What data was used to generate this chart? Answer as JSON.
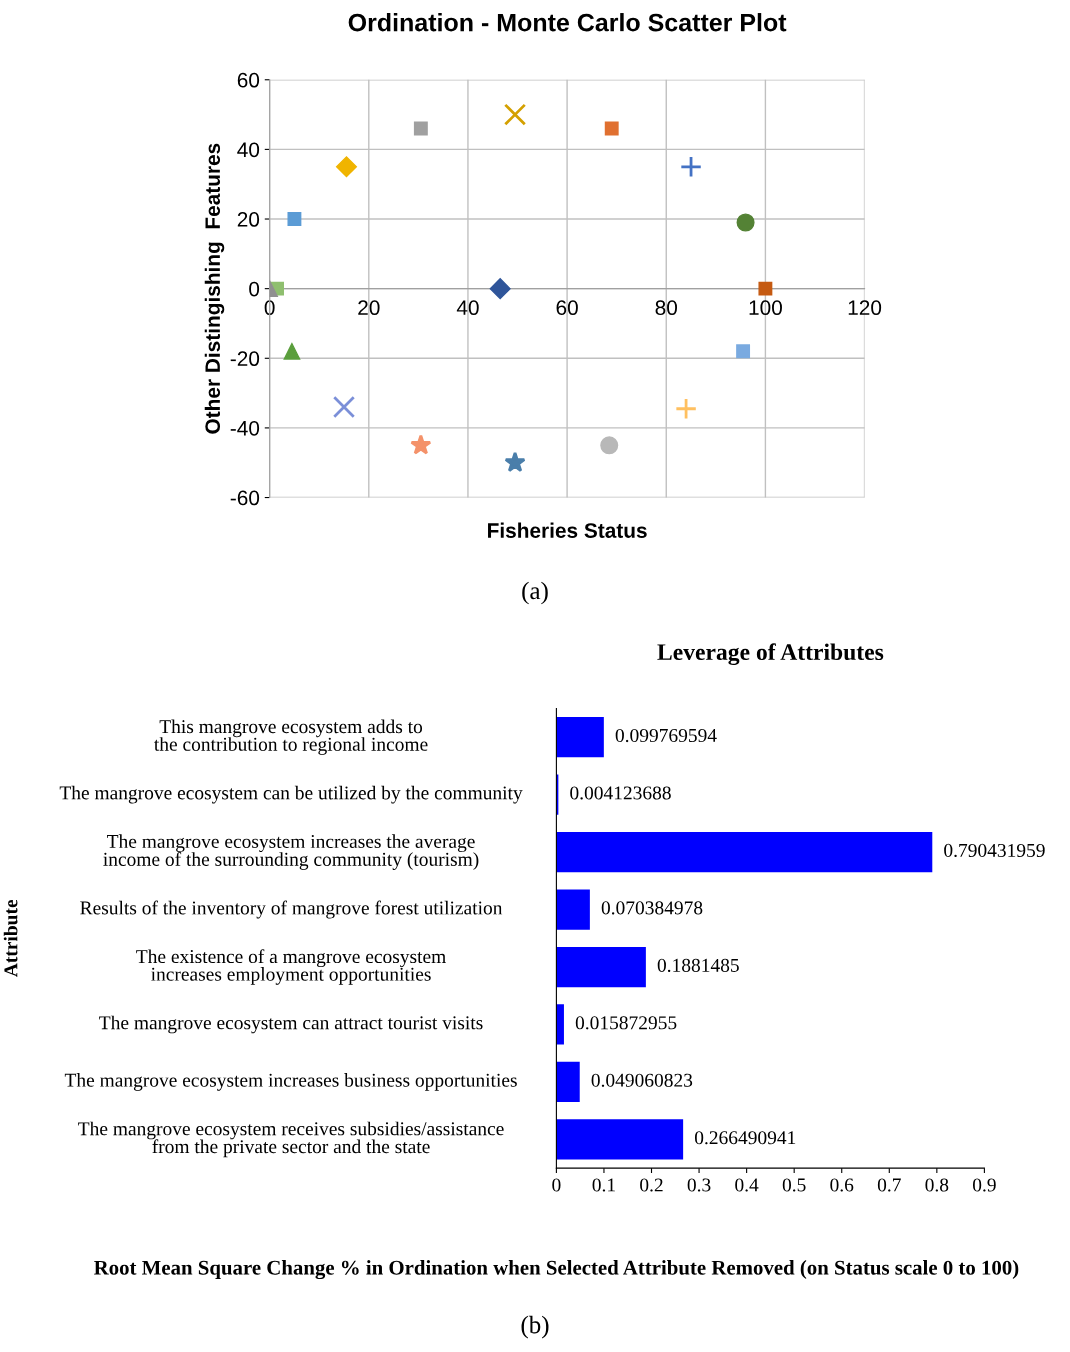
{
  "chart_data": [
    {
      "type": "scatter",
      "title": "Ordination - Monte Carlo Scatter Plot",
      "xlabel": "Fisheries Status",
      "ylabel": "Other Distingishing  Features",
      "xlim": [
        0,
        120
      ],
      "xticks": [
        0,
        20,
        40,
        60,
        80,
        100,
        120
      ],
      "ylim": [
        -60,
        60
      ],
      "yticks": [
        -60,
        -40,
        -20,
        0,
        20,
        40,
        60
      ],
      "grid": true,
      "annotations": [
        "(a)"
      ],
      "series": [
        {
          "x": [
            0
          ],
          "values": [
            0
          ],
          "color": "#909090",
          "marker": "triangle"
        },
        {
          "x": [
            1.5
          ],
          "values": [
            0
          ],
          "color": "#8fbf6f",
          "marker": "square"
        },
        {
          "x": [
            4.5
          ],
          "values": [
            -18
          ],
          "color": "#5a9e3c",
          "marker": "triangle"
        },
        {
          "x": [
            5
          ],
          "values": [
            20
          ],
          "color": "#5b9bd5",
          "marker": "square"
        },
        {
          "x": [
            15.5
          ],
          "values": [
            35
          ],
          "color": "#f0b400",
          "marker": "diamond"
        },
        {
          "x": [
            15
          ],
          "values": [
            -34
          ],
          "color": "#7b8fd8",
          "marker": "cross"
        },
        {
          "x": [
            30.5
          ],
          "values": [
            46
          ],
          "color": "#a0a0a0",
          "marker": "square"
        },
        {
          "x": [
            30.5
          ],
          "values": [
            -45
          ],
          "color": "#f4926a",
          "marker": "star"
        },
        {
          "x": [
            46.5
          ],
          "values": [
            0
          ],
          "color": "#2f559a",
          "marker": "diamond"
        },
        {
          "x": [
            49.5
          ],
          "values": [
            50
          ],
          "color": "#d4a000",
          "marker": "cross"
        },
        {
          "x": [
            49.5
          ],
          "values": [
            -50
          ],
          "color": "#4a7eaa",
          "marker": "star"
        },
        {
          "x": [
            69
          ],
          "values": [
            46
          ],
          "color": "#e07030",
          "marker": "square"
        },
        {
          "x": [
            68.5
          ],
          "values": [
            -45
          ],
          "color": "#b8b8b8",
          "marker": "circle"
        },
        {
          "x": [
            85
          ],
          "values": [
            35
          ],
          "color": "#4472c4",
          "marker": "plus"
        },
        {
          "x": [
            84
          ],
          "values": [
            -34.5
          ],
          "color": "#ffc060",
          "marker": "plus"
        },
        {
          "x": [
            96
          ],
          "values": [
            19
          ],
          "color": "#548235",
          "marker": "circle"
        },
        {
          "x": [
            95.5
          ],
          "values": [
            -18
          ],
          "color": "#7aaae0",
          "marker": "square"
        },
        {
          "x": [
            100
          ],
          "values": [
            0
          ],
          "color": "#c55a11",
          "marker": "square"
        }
      ]
    },
    {
      "type": "bar",
      "orientation": "horizontal",
      "title": "Leverage of Attributes",
      "ylabel": "Attribute",
      "xlabel": "Root Mean Square Change % in Ordination when Selected Attribute Removed (on Status scale 0 to 100)",
      "categories": [
        "This mangrove ecosystem adds to the contribution to regional income",
        "The mangrove ecosystem can be utilized by the community",
        "The mangrove ecosystem increases the average income of the surrounding community (tourism)",
        "Results of the inventory of mangrove forest utilization",
        "The existence of a mangrove ecosystem increases employment opportunities",
        "The mangrove ecosystem can attract tourist visits",
        "The mangrove ecosystem increases business opportunities",
        "The mangrove ecosystem receives subsidies/assistance from the private sector and the state"
      ],
      "values": [
        0.099769594,
        0.004123688,
        0.790431959,
        0.070384978,
        0.1881485,
        0.015872955,
        0.049060823,
        0.266490941
      ],
      "color": "#0000ff",
      "data_labels": true,
      "xlim": [
        0,
        0.9
      ],
      "xticks": [
        0,
        0.1,
        0.2,
        0.3,
        0.4,
        0.5,
        0.6,
        0.7,
        0.8,
        0.9
      ],
      "annotations": [
        "(b)"
      ]
    }
  ]
}
